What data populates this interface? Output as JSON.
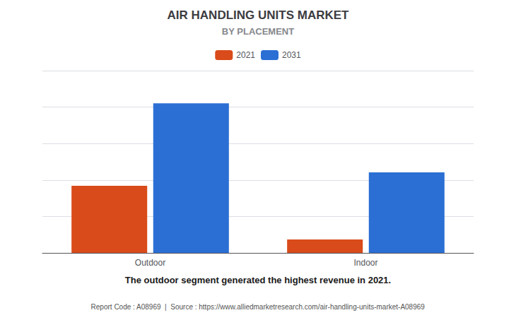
{
  "chart_data": {
    "type": "bar",
    "title": "AIR HANDLING UNITS MARKET",
    "subtitle": "BY PLACEMENT",
    "categories": [
      "Outdoor",
      "Indoor"
    ],
    "series": [
      {
        "name": "2021",
        "color": "#D94B1A",
        "values": [
          3.5,
          0.7
        ]
      },
      {
        "name": "2031",
        "color": "#2B6FD4",
        "values": [
          7.8,
          4.2
        ]
      }
    ],
    "ylim": [
      0,
      9.5
    ],
    "yticks": [
      0,
      1.9,
      3.8,
      5.7,
      7.6,
      9.5
    ],
    "grid": true,
    "tick_labels": "x",
    "legend": "top",
    "annotation": "The outdoor segment generated the highest revenue in 2021.",
    "source": "Report Code : A08969  |  Source : https://www.alliedmarketresearch.com/air-handling-units-market-A08969"
  }
}
